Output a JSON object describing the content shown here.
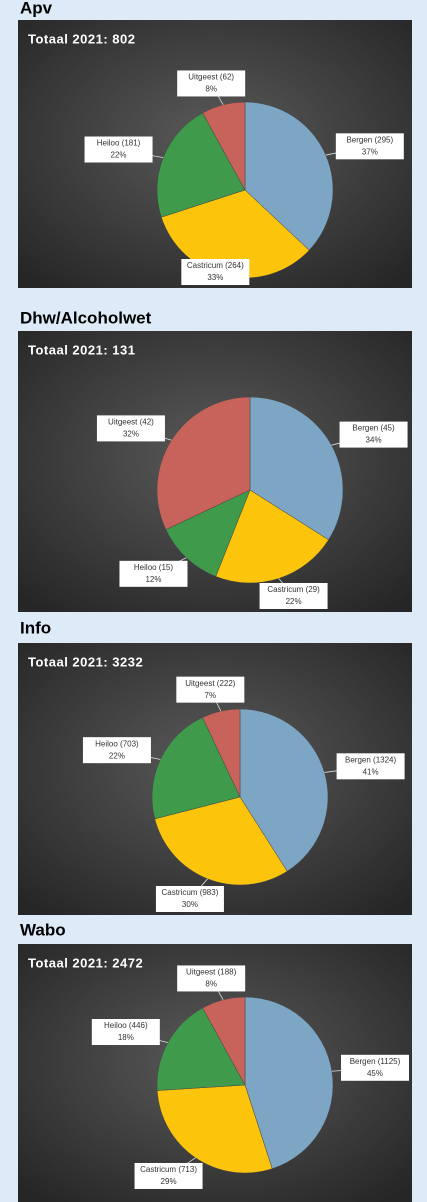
{
  "chart_data": [
    {
      "type": "pie",
      "title": "Apv",
      "subtitle": "Totaal 2021: 802",
      "categories": [
        "Bergen (295)",
        "Castricum (264)",
        "Heiloo (181)",
        "Uitgeest (62)"
      ],
      "values": [
        37,
        33,
        22,
        8
      ],
      "value_labels": [
        "37%",
        "33%",
        "22%",
        "8%"
      ],
      "colors": [
        "#7ca6c4",
        "#fcc40a",
        "#3f9a4c",
        "#c7635b"
      ]
    },
    {
      "type": "pie",
      "title": "Dhw/Alcoholwet",
      "subtitle": "Totaal 2021: 131",
      "categories": [
        "Bergen (45)",
        "Castricum (29)",
        "Heiloo (15)",
        "Uitgeest (42)"
      ],
      "values": [
        34,
        22,
        12,
        32
      ],
      "value_labels": [
        "34%",
        "22%",
        "12%",
        "32%"
      ],
      "colors": [
        "#7ca6c4",
        "#fcc40a",
        "#3f9a4c",
        "#c7635b"
      ]
    },
    {
      "type": "pie",
      "title": "Info",
      "subtitle": "Totaal 2021: 3232",
      "categories": [
        "Bergen (1324)",
        "Castricum (983)",
        "Heiloo (703)",
        "Uitgeest (222)"
      ],
      "values": [
        41,
        30,
        22,
        7
      ],
      "value_labels": [
        "41%",
        "30%",
        "22%",
        "7%"
      ],
      "colors": [
        "#7ca6c4",
        "#fcc40a",
        "#3f9a4c",
        "#c7635b"
      ]
    },
    {
      "type": "pie",
      "title": "Wabo",
      "subtitle": "Totaal 2021: 2472",
      "categories": [
        "Bergen (1125)",
        "Castricum (713)",
        "Heiloo (446)",
        "Uitgeest (188)"
      ],
      "values": [
        45,
        29,
        18,
        8
      ],
      "value_labels": [
        "45%",
        "29%",
        "18%",
        "8%"
      ],
      "colors": [
        "#7ca6c4",
        "#fcc40a",
        "#3f9a4c",
        "#c7635b"
      ]
    }
  ]
}
